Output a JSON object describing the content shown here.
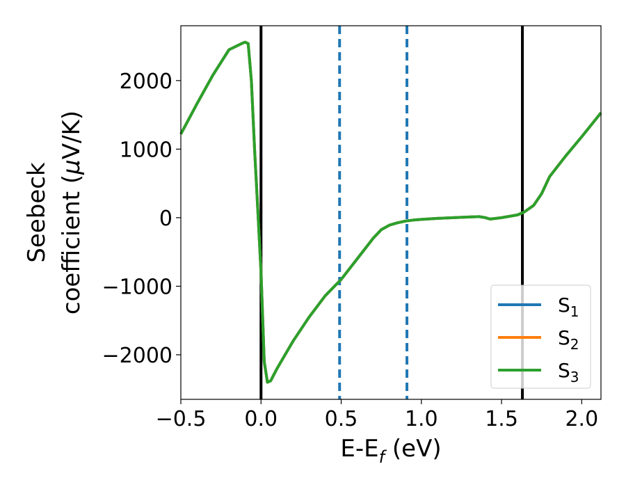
{
  "chart_data": {
    "type": "line",
    "title": "",
    "xlabel": "E-E",
    "xlabel_sub": "f",
    "xlabel_unit": " (eV)",
    "ylabel_line1": "Seebeck",
    "ylabel_line2": "coefficient  (",
    "ylabel_mu": "μ",
    "ylabel_unit": "V/K)",
    "xlim": [
      -0.5,
      2.12
    ],
    "ylim": [
      -2650,
      2800
    ],
    "x_ticks": [
      -0.5,
      0.0,
      0.5,
      1.0,
      1.5,
      2.0
    ],
    "x_tick_labels": [
      "−0.5",
      "0.0",
      "0.5",
      "1.0",
      "1.5",
      "2.0"
    ],
    "y_ticks": [
      -2000,
      -1000,
      0,
      1000,
      2000
    ],
    "y_tick_labels": [
      "−2000",
      "−1000",
      "0",
      "1000",
      "2000"
    ],
    "grid": false,
    "legend_position": "lower-right",
    "series": [
      {
        "name": "S",
        "sub": "1",
        "color": "#1f77b4"
      },
      {
        "name": "S",
        "sub": "2",
        "color": "#ff7f0e"
      },
      {
        "name": "S",
        "sub": "3",
        "color": "#2ca02c"
      }
    ],
    "x": [
      -0.5,
      -0.4,
      -0.3,
      -0.2,
      -0.12,
      -0.1,
      -0.08,
      -0.06,
      -0.04,
      -0.02,
      0.0,
      0.02,
      0.04,
      0.06,
      0.1,
      0.2,
      0.3,
      0.4,
      0.5,
      0.6,
      0.7,
      0.75,
      0.8,
      0.85,
      0.9,
      0.95,
      1.0,
      1.1,
      1.2,
      1.3,
      1.36,
      1.4,
      1.43,
      1.5,
      1.6,
      1.64,
      1.7,
      1.75,
      1.8,
      1.9,
      2.0,
      2.12
    ],
    "y": [
      1220,
      1660,
      2080,
      2450,
      2540,
      2560,
      2540,
      2000,
      1000,
      100,
      -800,
      -2100,
      -2400,
      -2380,
      -2200,
      -1800,
      -1450,
      -1140,
      -900,
      -600,
      -300,
      -175,
      -110,
      -75,
      -50,
      -35,
      -25,
      -10,
      0,
      10,
      15,
      0,
      -20,
      0,
      40,
      80,
      180,
      350,
      600,
      900,
      1180,
      1530
    ],
    "vertical_lines": [
      {
        "x": 0.0,
        "color": "#000000",
        "style": "solid"
      },
      {
        "x": 1.63,
        "color": "#000000",
        "style": "solid"
      },
      {
        "x": 0.49,
        "color": "#1f77b4",
        "style": "dashed"
      },
      {
        "x": 0.91,
        "color": "#1f77b4",
        "style": "dashed"
      }
    ]
  }
}
